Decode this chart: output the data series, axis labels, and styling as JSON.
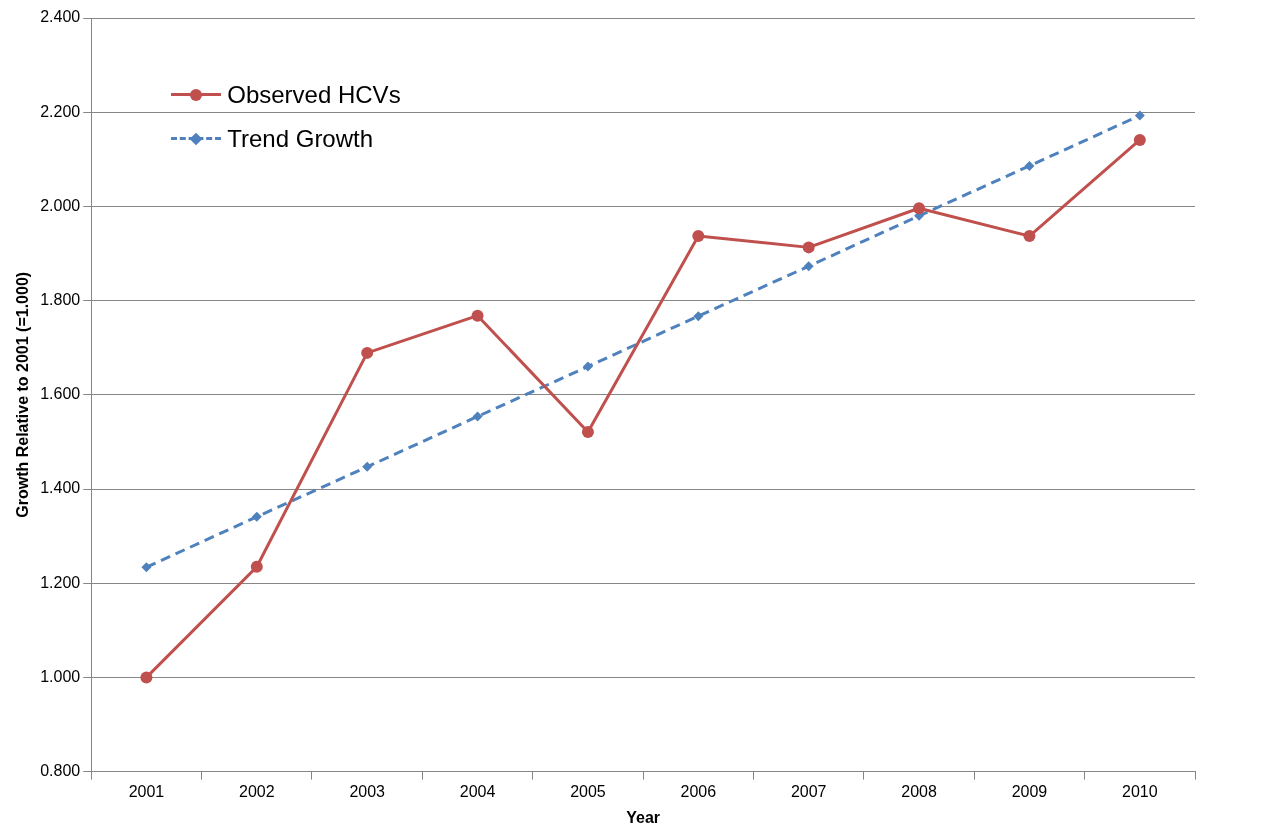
{
  "chart_data": {
    "type": "line",
    "xlabel": "Year",
    "ylabel": "Growth Relative to 2001 (=1.000)",
    "categories": [
      "2001",
      "2002",
      "2003",
      "2004",
      "2005",
      "2006",
      "2007",
      "2008",
      "2009",
      "2010"
    ],
    "series": [
      {
        "name": "Observed HCVs",
        "color": "#c0504d",
        "marker": "circle",
        "line_style": "solid",
        "values": [
          1.0,
          1.235,
          1.689,
          1.768,
          1.521,
          1.937,
          1.913,
          1.996,
          1.937,
          2.141
        ]
      },
      {
        "name": "Trend Growth",
        "color": "#4f81bd",
        "marker": "diamond",
        "line_style": "dashed",
        "values": [
          1.234,
          1.341,
          1.447,
          1.554,
          1.66,
          1.767,
          1.873,
          1.98,
          2.086,
          2.193
        ]
      }
    ],
    "ylim": [
      0.8,
      2.4
    ],
    "yticks": [
      {
        "value": 0.8,
        "label": "0.800"
      },
      {
        "value": 1.0,
        "label": "1.000"
      },
      {
        "value": 1.2,
        "label": "1.200"
      },
      {
        "value": 1.4,
        "label": "1.400"
      },
      {
        "value": 1.6,
        "label": "1.600"
      },
      {
        "value": 1.8,
        "label": "1.800"
      },
      {
        "value": 2.0,
        "label": "2.000"
      },
      {
        "value": 2.2,
        "label": "2.200"
      },
      {
        "value": 2.4,
        "label": "2.400"
      }
    ],
    "grid": "y",
    "legend": "top left"
  }
}
